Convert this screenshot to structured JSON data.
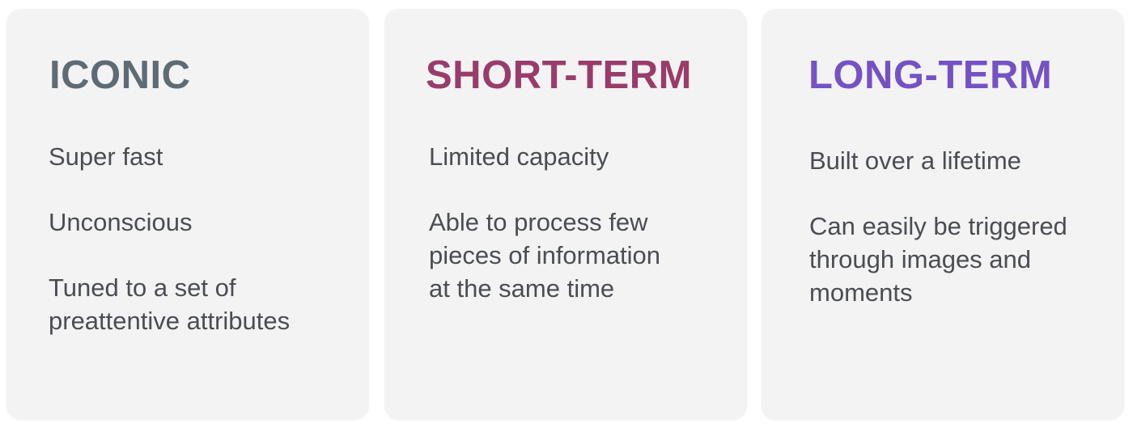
{
  "cards": [
    {
      "title": "ICONIC",
      "title_color": "#5f6b73",
      "items": [
        "Super fast",
        "Unconscious",
        "Tuned to a set of preattentive attributes"
      ]
    },
    {
      "title": "SHORT-TERM",
      "title_color": "#9a3c6a",
      "items": [
        "Limited capacity",
        "Able to process few pieces of information at the same time"
      ]
    },
    {
      "title": "LONG-TERM",
      "title_color": "#7552c4",
      "items": [
        "Built over a lifetime",
        "Can easily be triggered through images and moments"
      ]
    }
  ]
}
